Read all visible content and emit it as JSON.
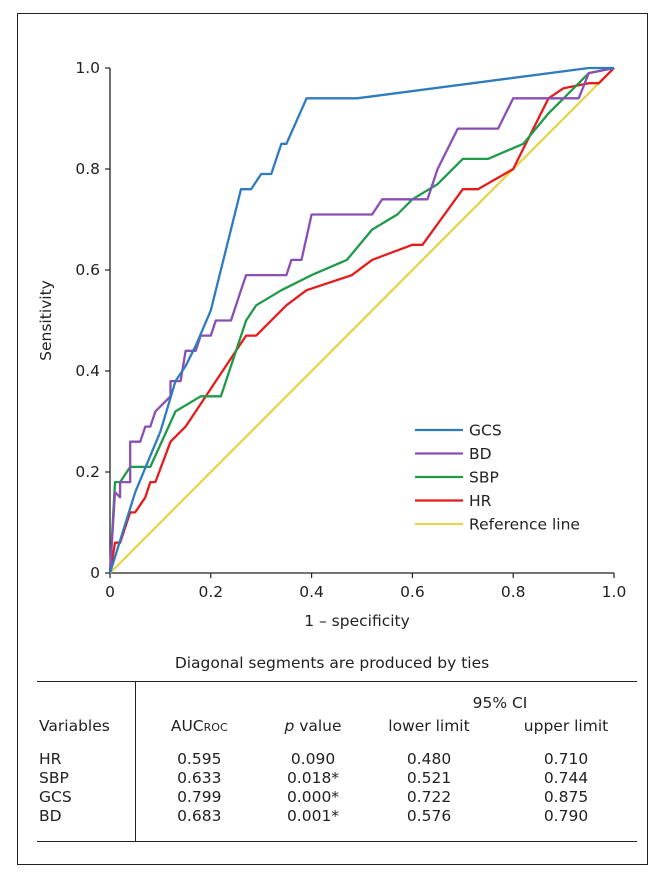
{
  "chart_data": {
    "type": "line",
    "xlabel": "1 – specificity",
    "ylabel": "Sensitivity",
    "xlim": [
      0,
      1
    ],
    "ylim": [
      0,
      1
    ],
    "x_ticks": [
      "0",
      "0.2",
      "0.4",
      "0.6",
      "0.8",
      "1.0"
    ],
    "y_ticks": [
      "0",
      "0.2",
      "0.4",
      "0.6",
      "0.8",
      "1.0"
    ],
    "grid": false,
    "legend_position": "bottom-right",
    "series": [
      {
        "name": "GCS",
        "color": "#2f7bbf",
        "points": [
          [
            0,
            0
          ],
          [
            0.05,
            0.16
          ],
          [
            0.1,
            0.28
          ],
          [
            0.13,
            0.38
          ],
          [
            0.15,
            0.41
          ],
          [
            0.17,
            0.45
          ],
          [
            0.2,
            0.52
          ],
          [
            0.26,
            0.76
          ],
          [
            0.28,
            0.76
          ],
          [
            0.3,
            0.79
          ],
          [
            0.32,
            0.79
          ],
          [
            0.33,
            0.82
          ],
          [
            0.34,
            0.85
          ],
          [
            0.35,
            0.85
          ],
          [
            0.39,
            0.94
          ],
          [
            0.49,
            0.94
          ],
          [
            0.95,
            1.0
          ],
          [
            1.0,
            1.0
          ]
        ]
      },
      {
        "name": "BD",
        "color": "#8a4fb5",
        "points": [
          [
            0,
            0
          ],
          [
            0.01,
            0.16
          ],
          [
            0.02,
            0.15
          ],
          [
            0.02,
            0.18
          ],
          [
            0.04,
            0.18
          ],
          [
            0.04,
            0.26
          ],
          [
            0.06,
            0.26
          ],
          [
            0.07,
            0.29
          ],
          [
            0.08,
            0.29
          ],
          [
            0.09,
            0.32
          ],
          [
            0.12,
            0.35
          ],
          [
            0.12,
            0.38
          ],
          [
            0.14,
            0.38
          ],
          [
            0.15,
            0.44
          ],
          [
            0.17,
            0.44
          ],
          [
            0.18,
            0.47
          ],
          [
            0.2,
            0.47
          ],
          [
            0.21,
            0.5
          ],
          [
            0.24,
            0.5
          ],
          [
            0.26,
            0.56
          ],
          [
            0.27,
            0.59
          ],
          [
            0.35,
            0.59
          ],
          [
            0.36,
            0.62
          ],
          [
            0.38,
            0.62
          ],
          [
            0.4,
            0.71
          ],
          [
            0.52,
            0.71
          ],
          [
            0.54,
            0.74
          ],
          [
            0.63,
            0.74
          ],
          [
            0.65,
            0.8
          ],
          [
            0.69,
            0.88
          ],
          [
            0.77,
            0.88
          ],
          [
            0.8,
            0.94
          ],
          [
            0.93,
            0.94
          ],
          [
            0.95,
            0.99
          ],
          [
            1.0,
            1.0
          ]
        ]
      },
      {
        "name": "SBP",
        "color": "#1f9a48",
        "points": [
          [
            0,
            0
          ],
          [
            0.01,
            0.18
          ],
          [
            0.02,
            0.18
          ],
          [
            0.04,
            0.21
          ],
          [
            0.08,
            0.21
          ],
          [
            0.13,
            0.32
          ],
          [
            0.18,
            0.35
          ],
          [
            0.22,
            0.35
          ],
          [
            0.27,
            0.5
          ],
          [
            0.29,
            0.53
          ],
          [
            0.34,
            0.56
          ],
          [
            0.4,
            0.59
          ],
          [
            0.47,
            0.62
          ],
          [
            0.52,
            0.68
          ],
          [
            0.57,
            0.71
          ],
          [
            0.6,
            0.74
          ],
          [
            0.65,
            0.77
          ],
          [
            0.7,
            0.82
          ],
          [
            0.75,
            0.82
          ],
          [
            0.82,
            0.85
          ],
          [
            0.87,
            0.91
          ],
          [
            0.9,
            0.94
          ],
          [
            0.93,
            0.97
          ],
          [
            0.95,
            0.99
          ],
          [
            1.0,
            1.0
          ]
        ]
      },
      {
        "name": "HR",
        "color": "#e61b1b",
        "points": [
          [
            0,
            0
          ],
          [
            0.01,
            0.06
          ],
          [
            0.02,
            0.06
          ],
          [
            0.04,
            0.12
          ],
          [
            0.05,
            0.12
          ],
          [
            0.07,
            0.15
          ],
          [
            0.08,
            0.18
          ],
          [
            0.09,
            0.18
          ],
          [
            0.12,
            0.26
          ],
          [
            0.15,
            0.29
          ],
          [
            0.23,
            0.41
          ],
          [
            0.27,
            0.47
          ],
          [
            0.29,
            0.47
          ],
          [
            0.35,
            0.53
          ],
          [
            0.39,
            0.56
          ],
          [
            0.48,
            0.59
          ],
          [
            0.52,
            0.62
          ],
          [
            0.6,
            0.65
          ],
          [
            0.62,
            0.65
          ],
          [
            0.7,
            0.76
          ],
          [
            0.73,
            0.76
          ],
          [
            0.8,
            0.8
          ],
          [
            0.81,
            0.82
          ],
          [
            0.87,
            0.94
          ],
          [
            0.9,
            0.96
          ],
          [
            0.95,
            0.97
          ],
          [
            0.97,
            0.97
          ],
          [
            1.0,
            1.0
          ]
        ]
      },
      {
        "name": "Reference line",
        "color": "#e6d44c",
        "points": [
          [
            0,
            0
          ],
          [
            1,
            1
          ]
        ]
      }
    ]
  },
  "note": "Diagonal segments are produced by ties",
  "table": {
    "ci_header": "95% CI",
    "headers": {
      "variables": "Variables",
      "auc_main": "AUC",
      "auc_sub": "ROC",
      "p_italic": "p",
      "p_rest": " value",
      "lower": "lower limit",
      "upper": "upper limit"
    },
    "rows": [
      {
        "variable": "HR",
        "auc": "0.595",
        "p": "0.090",
        "lower": "0.480",
        "upper": "0.710"
      },
      {
        "variable": "SBP",
        "auc": "0.633",
        "p": "0.018*",
        "lower": "0.521",
        "upper": "0.744"
      },
      {
        "variable": "GCS",
        "auc": "0.799",
        "p": "0.000*",
        "lower": "0.722",
        "upper": "0.875"
      },
      {
        "variable": "BD",
        "auc": "0.683",
        "p": "0.001*",
        "lower": "0.576",
        "upper": "0.790"
      }
    ]
  }
}
